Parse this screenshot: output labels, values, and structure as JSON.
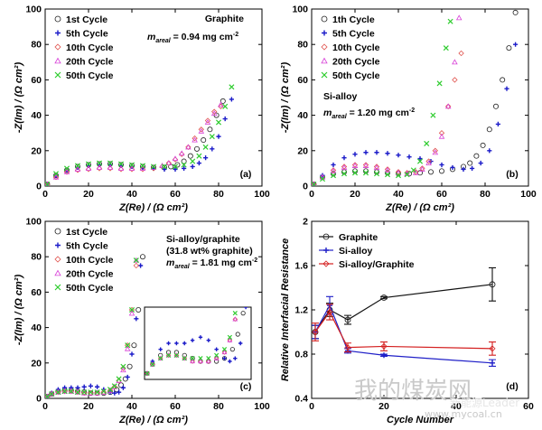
{
  "watermark": {
    "main": "我的煤炭网",
    "url": "www.mycoal.cn",
    "overlay": "新能源Leader"
  },
  "chart_data": [
    {
      "type": "scatter",
      "panel": "(a)",
      "xlabel": "Z(Re) / (Ω cm²)",
      "ylabel": "-Z(Im) / (Ω cm²)",
      "xlim": [
        0,
        100
      ],
      "ylim": [
        0,
        100
      ],
      "xticks": [
        "0",
        "20",
        "40",
        "60",
        "80",
        "100"
      ],
      "yticks": [
        "0",
        "20",
        "40",
        "60",
        "80",
        "100"
      ],
      "legend_position": "top-left",
      "annotation_title": "Graphite",
      "annotation_lines": [
        [
          "m",
          "areal",
          " = 0.94 mg cm",
          "-2"
        ]
      ],
      "series": [
        {
          "name": "1st Cycle",
          "marker": "circle",
          "color": "#222222",
          "x": [
            1,
            5,
            10,
            15,
            20,
            25,
            30,
            35,
            40,
            45,
            50,
            55,
            58,
            61,
            64,
            67,
            70,
            73,
            76,
            79,
            82
          ],
          "y": [
            1,
            6,
            9,
            11,
            12,
            12.5,
            12.5,
            12,
            11.5,
            11,
            10.5,
            10.5,
            11,
            12,
            14,
            17,
            21,
            26,
            32,
            40,
            48
          ]
        },
        {
          "name": "5th Cycle",
          "marker": "plus",
          "color": "#1b1bc9",
          "x": [
            1,
            5,
            10,
            15,
            20,
            25,
            30,
            35,
            40,
            45,
            50,
            55,
            60,
            64,
            68,
            71,
            74,
            77,
            80,
            83,
            86
          ],
          "y": [
            1,
            6,
            9,
            10.5,
            11.5,
            12,
            12,
            11.5,
            11,
            10.5,
            10,
            9.5,
            9.5,
            10,
            11,
            13,
            16,
            21,
            28,
            38,
            49
          ]
        },
        {
          "name": "10th Cycle",
          "marker": "diamond",
          "color": "#e0534e",
          "x": [
            1,
            5,
            10,
            15,
            20,
            25,
            30,
            35,
            40,
            45,
            50,
            54,
            57,
            60,
            63,
            66,
            69,
            72,
            75,
            78,
            81
          ],
          "y": [
            1,
            5,
            8,
            9,
            9.5,
            10,
            10,
            9.5,
            9.5,
            9.5,
            10,
            11,
            13,
            15,
            18,
            22,
            27,
            32,
            37,
            42,
            45
          ]
        },
        {
          "name": "20th Cycle",
          "marker": "triangle",
          "color": "#d842d8",
          "x": [
            1,
            5,
            10,
            15,
            20,
            25,
            30,
            35,
            40,
            45,
            50,
            54,
            57,
            60,
            63,
            66,
            69,
            72,
            75,
            78,
            81
          ],
          "y": [
            1,
            5,
            8,
            9.5,
            10,
            10.5,
            10.5,
            10,
            10,
            10,
            10.5,
            11.5,
            13,
            15.5,
            18.5,
            22,
            26,
            31,
            36,
            41,
            46
          ]
        },
        {
          "name": "50th Cycle",
          "marker": "x",
          "color": "#2ecc2e",
          "x": [
            1,
            5,
            10,
            15,
            20,
            25,
            30,
            35,
            40,
            45,
            50,
            55,
            60,
            64,
            68,
            71,
            74,
            77,
            80,
            83,
            86
          ],
          "y": [
            1,
            7,
            10,
            11.5,
            12.5,
            13,
            13,
            12.5,
            12,
            11.5,
            11,
            11,
            11,
            12,
            14,
            17,
            22,
            28,
            36,
            45,
            56
          ]
        }
      ]
    },
    {
      "type": "scatter",
      "panel": "(b)",
      "xlabel": "Z(Re) / (Ω cm²)",
      "ylabel": "-Z(Im) / (Ω cm²)",
      "xlim": [
        0,
        100
      ],
      "ylim": [
        0,
        100
      ],
      "xticks": [
        "0",
        "20",
        "40",
        "60",
        "80",
        "100"
      ],
      "yticks": [
        "0",
        "20",
        "40",
        "60",
        "80",
        "100"
      ],
      "legend_position": "top-left",
      "annotation_title": "Si-alloy",
      "annotation_lines": [
        [
          "m",
          "areal",
          " = 1.20 mg cm",
          "-2"
        ]
      ],
      "series": [
        {
          "name": "1th Cycle",
          "marker": "circle",
          "color": "#222222",
          "x": [
            1,
            5,
            10,
            15,
            20,
            25,
            30,
            35,
            40,
            45,
            50,
            55,
            60,
            65,
            70,
            73,
            76,
            79,
            82,
            85,
            88,
            91,
            94
          ],
          "y": [
            1,
            5,
            7,
            8,
            8.5,
            8.5,
            8,
            7.5,
            7,
            7,
            7.5,
            8,
            8.5,
            9.5,
            11,
            13,
            17,
            23,
            32,
            45,
            60,
            78,
            98
          ]
        },
        {
          "name": "5th Cycle",
          "marker": "plus",
          "color": "#1b1bc9",
          "x": [
            1,
            5,
            10,
            15,
            20,
            25,
            30,
            35,
            40,
            45,
            50,
            55,
            60,
            65,
            70,
            74,
            78,
            82,
            86,
            90,
            94
          ],
          "y": [
            1,
            6,
            12,
            16,
            18,
            19,
            19,
            18.5,
            17.5,
            16.5,
            15.5,
            14,
            12,
            10.5,
            9.5,
            10,
            13,
            20,
            35,
            55,
            80
          ]
        },
        {
          "name": "10th Cycle",
          "marker": "diamond",
          "color": "#e0534e",
          "x": [
            1,
            5,
            10,
            15,
            20,
            25,
            30,
            35,
            40,
            44,
            48,
            51,
            54,
            57,
            60,
            63,
            66,
            69
          ],
          "y": [
            1,
            5,
            9,
            11,
            12,
            12,
            11,
            9.5,
            8,
            7.5,
            8,
            10,
            14,
            20,
            30,
            45,
            60,
            75
          ]
        },
        {
          "name": "20th Cycle",
          "marker": "triangle",
          "color": "#d842d8",
          "x": [
            1,
            5,
            10,
            15,
            20,
            25,
            30,
            35,
            40,
            44,
            48,
            51,
            54,
            57,
            60,
            63,
            66,
            68
          ],
          "y": [
            1,
            5,
            8.5,
            10.5,
            11.5,
            11.5,
            10.5,
            9,
            7.5,
            7,
            7.5,
            9.5,
            13,
            19,
            28,
            45,
            70,
            95
          ]
        },
        {
          "name": "50th Cycle",
          "marker": "x",
          "color": "#2ecc2e",
          "x": [
            1,
            5,
            10,
            15,
            20,
            25,
            30,
            35,
            40,
            44,
            47,
            50,
            53,
            56,
            59,
            62,
            64
          ],
          "y": [
            1,
            4,
            6,
            7,
            7.5,
            7.5,
            7,
            6.5,
            6,
            6.5,
            9,
            14,
            24,
            40,
            58,
            78,
            93
          ]
        }
      ]
    },
    {
      "type": "scatter",
      "panel": "(c)",
      "xlabel": "Z(Re) / (Ω cm²)",
      "ylabel": "-Z(Im) / (Ω cm²)",
      "xlim": [
        0,
        100
      ],
      "ylim": [
        0,
        100
      ],
      "xticks": [
        "0",
        "20",
        "40",
        "60",
        "80",
        "100"
      ],
      "yticks": [
        "0",
        "20",
        "40",
        "60",
        "80",
        "100"
      ],
      "legend_position": "top-left",
      "annotation_title": "Si-alloy/graphite",
      "annotation_lines": [
        [
          "(31.8 wt% graphite)",
          "",
          "",
          ""
        ],
        [
          "m",
          "areal",
          " = 1.81 mg cm",
          "-2"
        ]
      ],
      "series": [
        {
          "name": "1st Cycle",
          "marker": "circle",
          "color": "#222222",
          "x": [
            1,
            3,
            6,
            9,
            12,
            15,
            18,
            21,
            24,
            27,
            30,
            33,
            35,
            37,
            39,
            41,
            43,
            45
          ],
          "y": [
            1,
            2.5,
            4,
            4.5,
            4.5,
            4,
            3.5,
            3,
            3,
            3,
            3.5,
            5,
            7.5,
            11,
            18,
            30,
            50,
            80
          ]
        },
        {
          "name": "5th Cycle",
          "marker": "plus",
          "color": "#1b1bc9",
          "x": [
            1,
            3,
            6,
            9,
            12,
            15,
            18,
            21,
            24,
            27,
            30,
            32,
            34,
            36,
            38,
            40,
            42,
            44
          ],
          "y": [
            1,
            3,
            5,
            6,
            6,
            6,
            6.5,
            7,
            6.5,
            5,
            3.5,
            3,
            3.5,
            6,
            12,
            25,
            45,
            75
          ]
        },
        {
          "name": "10th Cycle",
          "marker": "diamond",
          "color": "#e0534e",
          "x": [
            1,
            3,
            6,
            9,
            12,
            15,
            18,
            21,
            24,
            27,
            30,
            32,
            34,
            36,
            38,
            40,
            42
          ],
          "y": [
            1,
            2.5,
            3.5,
            4,
            4,
            3.5,
            3,
            3,
            3,
            3.5,
            4.5,
            6.5,
            10,
            17,
            30,
            50,
            75
          ]
        },
        {
          "name": "20th Cycle",
          "marker": "triangle",
          "color": "#d842d8",
          "x": [
            1,
            3,
            6,
            9,
            12,
            15,
            18,
            21,
            24,
            27,
            30,
            32,
            34,
            36,
            38,
            40,
            42
          ],
          "y": [
            1,
            2.5,
            3.5,
            4,
            4,
            3.5,
            3,
            3,
            3,
            3.5,
            4.5,
            6.5,
            10,
            16,
            28,
            48,
            78
          ]
        },
        {
          "name": "50th Cycle",
          "marker": "x",
          "color": "#2ecc2e",
          "x": [
            1,
            3,
            6,
            9,
            12,
            15,
            18,
            21,
            24,
            27,
            30,
            32,
            34,
            36,
            38,
            40,
            42
          ],
          "y": [
            1,
            2.5,
            3.5,
            4,
            4,
            3.5,
            3.5,
            3.5,
            3.5,
            4,
            5,
            7,
            11,
            18,
            30,
            50,
            78
          ]
        }
      ]
    },
    {
      "type": "line",
      "panel": "(d)",
      "xlabel": "Cycle Number",
      "ylabel": "Relative Interfacial Resistance",
      "xlim": [
        0,
        60
      ],
      "ylim": [
        0.4,
        2.0
      ],
      "xticks": [
        "0",
        "20",
        "40",
        "60"
      ],
      "yticks": [
        "0.4",
        "0.8",
        "1.2",
        "1.6",
        "2"
      ],
      "legend_position": "top-left",
      "series": [
        {
          "name": "Graphite",
          "marker": "circle",
          "color": "#111111",
          "x": [
            1,
            5,
            10,
            20,
            50
          ],
          "y": [
            1.0,
            1.2,
            1.11,
            1.31,
            1.43
          ],
          "err": [
            0.06,
            0.06,
            0.04,
            0.01,
            0.15
          ]
        },
        {
          "name": "Si-alloy",
          "marker": "plus",
          "color": "#2020c8",
          "x": [
            1,
            5,
            10,
            20,
            50
          ],
          "y": [
            1.0,
            1.24,
            0.83,
            0.79,
            0.72
          ],
          "err": [
            0.06,
            0.08,
            0.02,
            0.01,
            0.03
          ]
        },
        {
          "name": "Si-alloy/Graphite",
          "marker": "diamond",
          "color": "#d42020",
          "x": [
            1,
            5,
            10,
            20,
            50
          ],
          "y": [
            1.0,
            1.18,
            0.86,
            0.87,
            0.85
          ],
          "err": [
            0.08,
            0.07,
            0.04,
            0.04,
            0.06
          ]
        }
      ]
    }
  ]
}
